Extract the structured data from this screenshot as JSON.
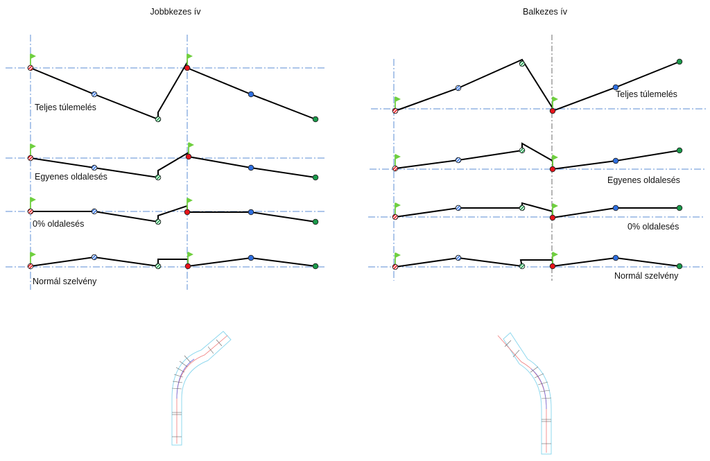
{
  "left_panel": {
    "title": "Jobbkezes ív",
    "rows": [
      {
        "label": "Teljes túlemelés"
      },
      {
        "label": "Egyenes oldalesés"
      },
      {
        "label": "0% oldalesés"
      },
      {
        "label": "Normál szelvény"
      }
    ]
  },
  "right_panel": {
    "title": "Balkezes ív",
    "rows": [
      {
        "label": "Teljes túlemelés"
      },
      {
        "label": "Egyenes oldalesés"
      },
      {
        "label": "0% oldalesés"
      },
      {
        "label": "Normál szelvény"
      }
    ]
  },
  "colors": {
    "axis": "#5b8ed6",
    "profile": "#000000",
    "flag": "#6fcf3f",
    "point_red": "#e8141b",
    "point_blue": "#2f6fe0",
    "point_green": "#1a9a4a",
    "road_edge": "#8fd8ee",
    "road_center": "#f07a7a"
  },
  "icons": [
    "flag-icon",
    "hatched-point-marker",
    "solid-point-marker"
  ]
}
